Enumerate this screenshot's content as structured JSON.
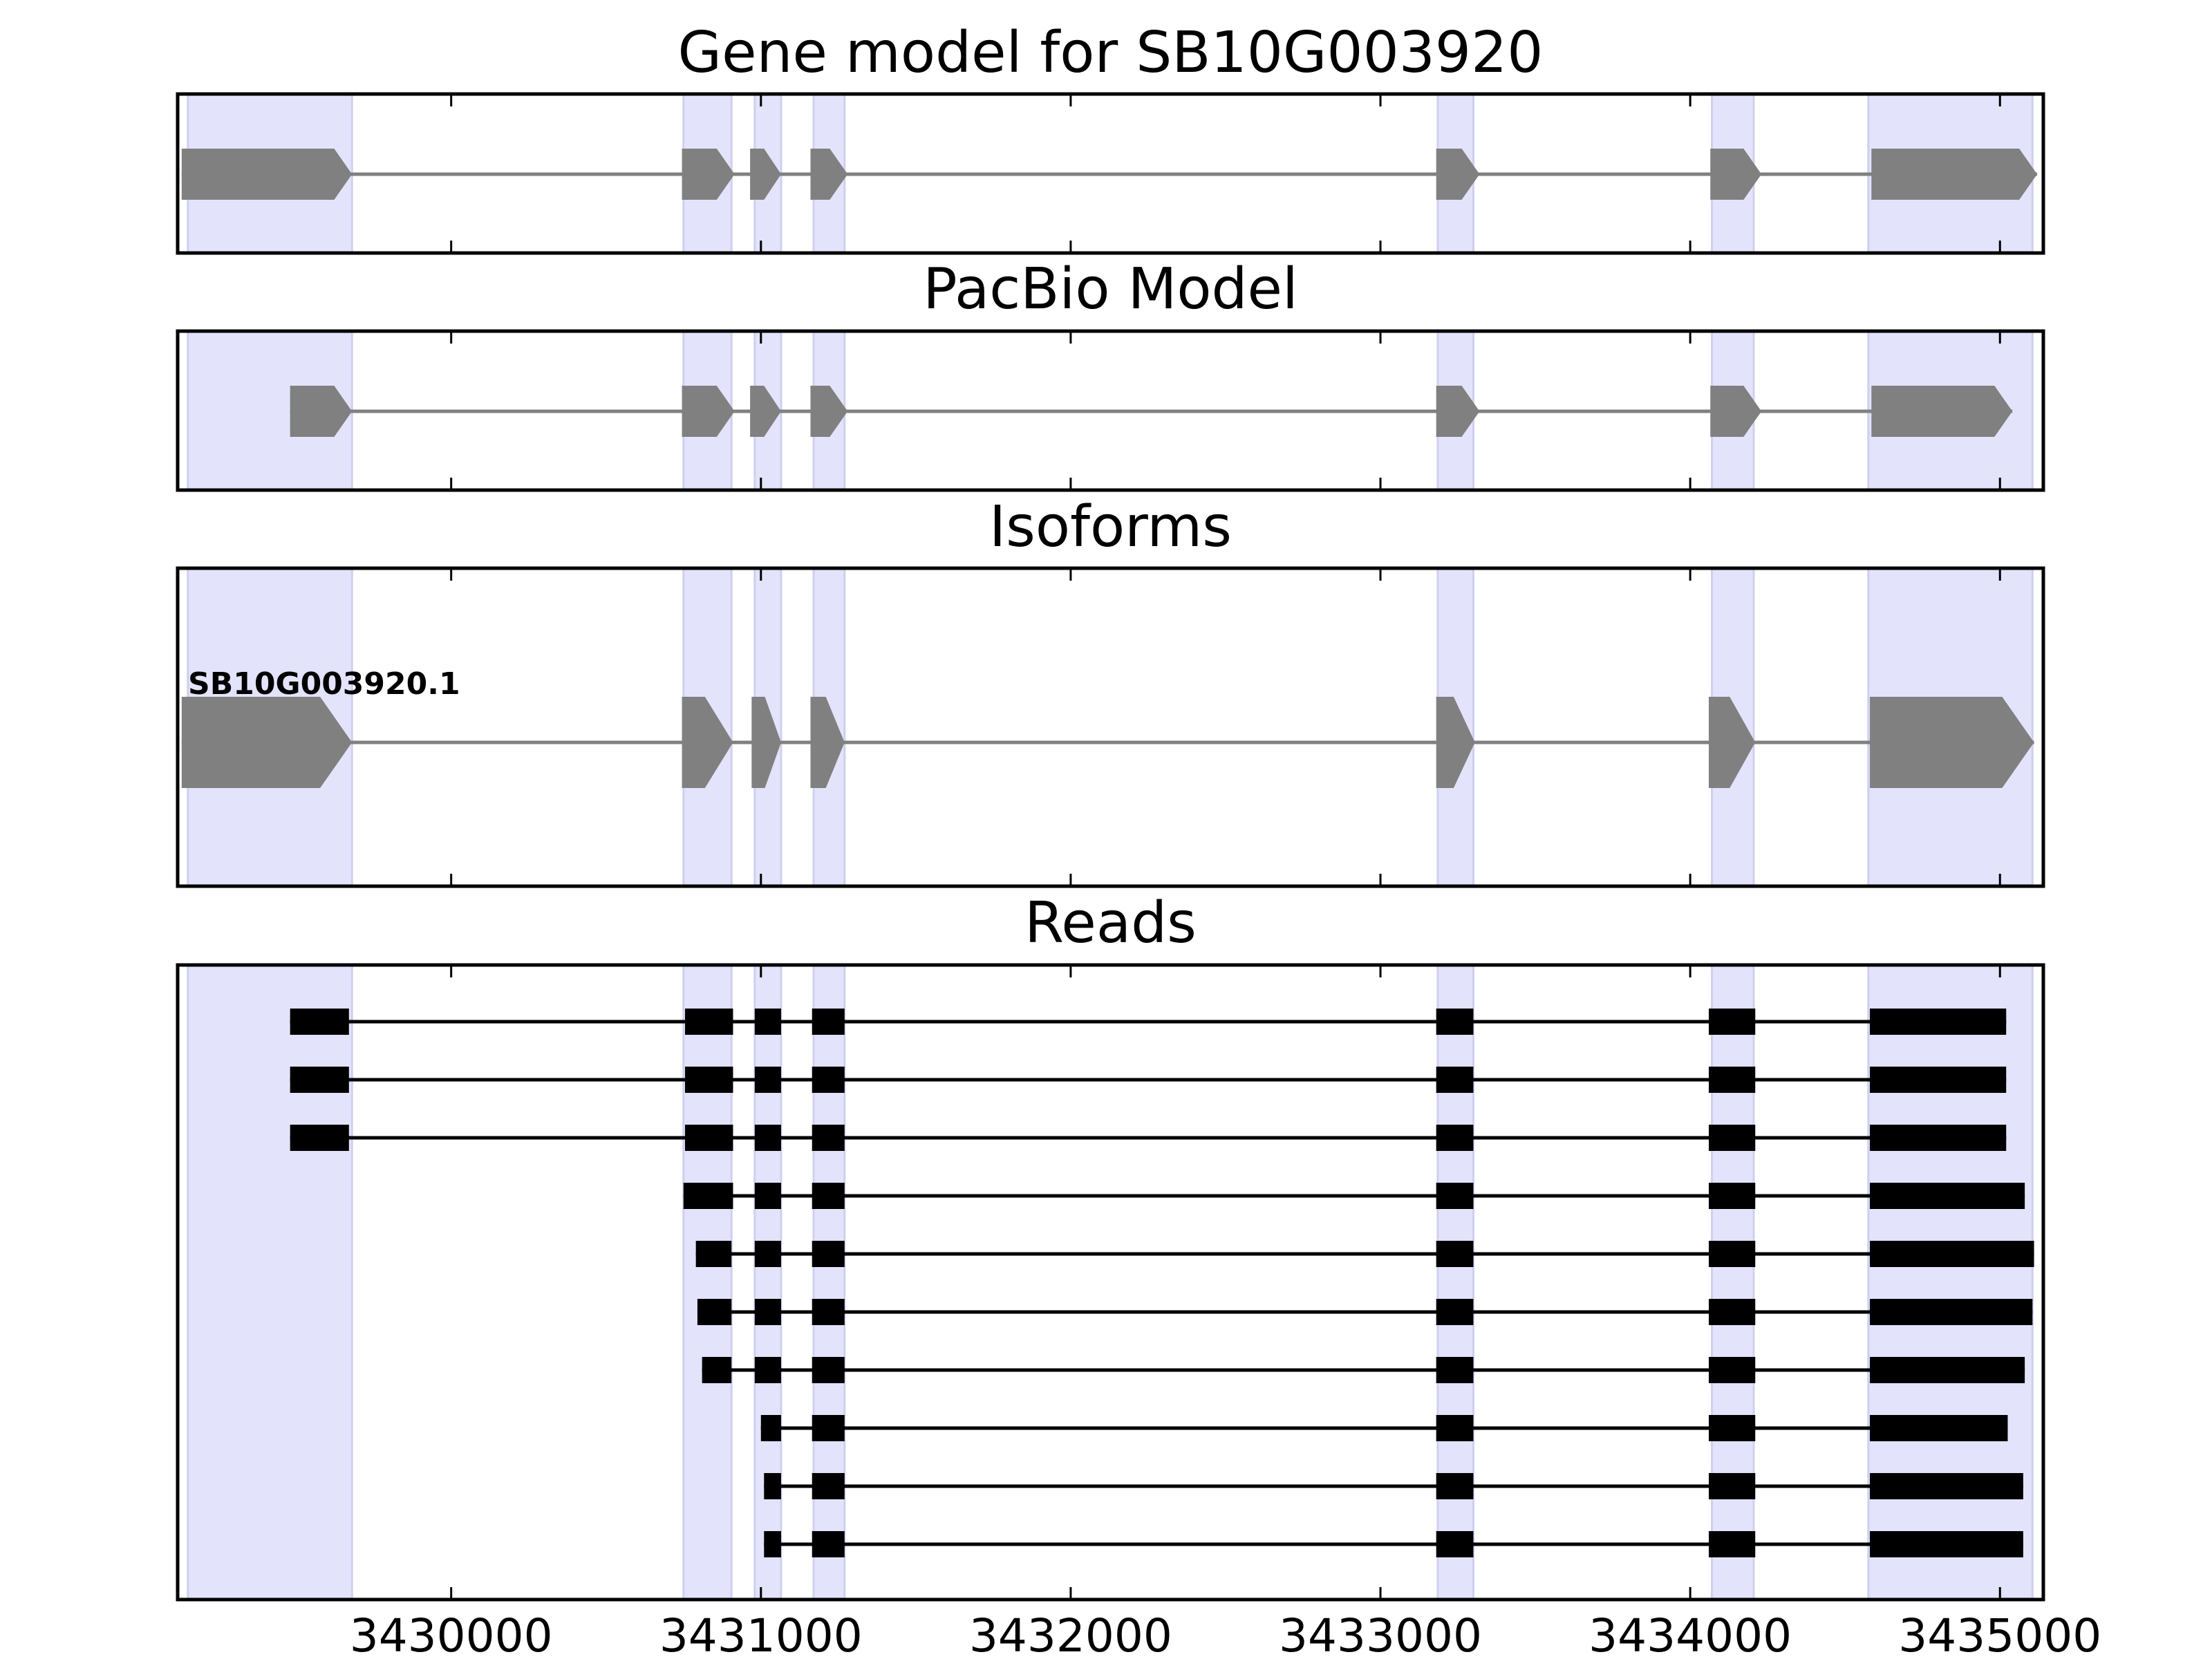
{
  "colors": {
    "exon_highlight": "#e3e3fb",
    "exon_highlight_edge": "#cfcff0",
    "model_fill": "#808080",
    "read_fill": "#000000",
    "frame": "#000000"
  },
  "chart_data": {
    "type": "gene-structure",
    "x_axis": {
      "ticks": [
        3430000,
        3431000,
        3432000,
        3433000,
        3434000,
        3435000
      ],
      "tick_labels": [
        "3430000",
        "3431000",
        "3432000",
        "3433000",
        "3434000",
        "3435000"
      ],
      "xlim": [
        3429117,
        3435140
      ]
    },
    "highlight_regions": [
      [
        3429150,
        3429680
      ],
      [
        3430750,
        3430905
      ],
      [
        3430980,
        3431065
      ],
      [
        3431170,
        3431270
      ],
      [
        3433185,
        3433300
      ],
      [
        3434070,
        3434205
      ],
      [
        3434575,
        3435105
      ]
    ],
    "panels": [
      {
        "title": "Gene model for SB10G003920",
        "kind": "gene",
        "exons": [
          [
            3429130,
            3429680
          ],
          [
            3430745,
            3430915
          ],
          [
            3430965,
            3431065
          ],
          [
            3431160,
            3431280
          ],
          [
            3433180,
            3433320
          ],
          [
            3434065,
            3434230
          ],
          [
            3434585,
            3435120
          ]
        ]
      },
      {
        "title": "PacBio Model",
        "kind": "gene",
        "exons": [
          [
            3429480,
            3429680
          ],
          [
            3430745,
            3430915
          ],
          [
            3430965,
            3431065
          ],
          [
            3431160,
            3431280
          ],
          [
            3433180,
            3433320
          ],
          [
            3434065,
            3434230
          ],
          [
            3434585,
            3435040
          ]
        ]
      },
      {
        "title": "Isoforms",
        "kind": "isoform",
        "isoform_label": "SB10G003920.1",
        "exons": [
          [
            3429130,
            3429680
          ],
          [
            3430745,
            3430910
          ],
          [
            3430970,
            3431065
          ],
          [
            3431160,
            3431270
          ],
          [
            3433180,
            3433305
          ],
          [
            3434060,
            3434210
          ],
          [
            3434580,
            3435110
          ]
        ]
      },
      {
        "title": "Reads",
        "kind": "reads",
        "reads": [
          [
            [
              3429480,
              3429670
            ],
            [
              3430755,
              3430910
            ],
            [
              3430980,
              3431065
            ],
            [
              3431165,
              3431270
            ],
            [
              3433180,
              3433300
            ],
            [
              3434060,
              3434210
            ],
            [
              3434580,
              3435020
            ]
          ],
          [
            [
              3429480,
              3429670
            ],
            [
              3430755,
              3430910
            ],
            [
              3430980,
              3431065
            ],
            [
              3431165,
              3431270
            ],
            [
              3433180,
              3433300
            ],
            [
              3434060,
              3434210
            ],
            [
              3434580,
              3435020
            ]
          ],
          [
            [
              3429480,
              3429670
            ],
            [
              3430755,
              3430910
            ],
            [
              3430980,
              3431065
            ],
            [
              3431165,
              3431270
            ],
            [
              3433180,
              3433300
            ],
            [
              3434060,
              3434210
            ],
            [
              3434580,
              3435020
            ]
          ],
          [
            [
              3430750,
              3430910
            ],
            [
              3430980,
              3431065
            ],
            [
              3431165,
              3431270
            ],
            [
              3433180,
              3433300
            ],
            [
              3434060,
              3434210
            ],
            [
              3434580,
              3435080
            ]
          ],
          [
            [
              3430790,
              3430905
            ],
            [
              3430980,
              3431065
            ],
            [
              3431165,
              3431270
            ],
            [
              3433180,
              3433300
            ],
            [
              3434060,
              3434210
            ],
            [
              3434580,
              3435110
            ]
          ],
          [
            [
              3430795,
              3430905
            ],
            [
              3430980,
              3431065
            ],
            [
              3431165,
              3431270
            ],
            [
              3433180,
              3433300
            ],
            [
              3434060,
              3434210
            ],
            [
              3434580,
              3435105
            ]
          ],
          [
            [
              3430810,
              3430905
            ],
            [
              3430980,
              3431065
            ],
            [
              3431165,
              3431270
            ],
            [
              3433180,
              3433300
            ],
            [
              3434060,
              3434210
            ],
            [
              3434580,
              3435080
            ]
          ],
          [
            [
              3431000,
              3431065
            ],
            [
              3431165,
              3431270
            ],
            [
              3433180,
              3433300
            ],
            [
              3434060,
              3434210
            ],
            [
              3434580,
              3435025
            ]
          ],
          [
            [
              3431010,
              3431065
            ],
            [
              3431165,
              3431270
            ],
            [
              3433180,
              3433300
            ],
            [
              3434060,
              3434210
            ],
            [
              3434580,
              3435075
            ]
          ],
          [
            [
              3431010,
              3431065
            ],
            [
              3431165,
              3431270
            ],
            [
              3433180,
              3433300
            ],
            [
              3434060,
              3434210
            ],
            [
              3434580,
              3435075
            ]
          ]
        ]
      }
    ]
  }
}
